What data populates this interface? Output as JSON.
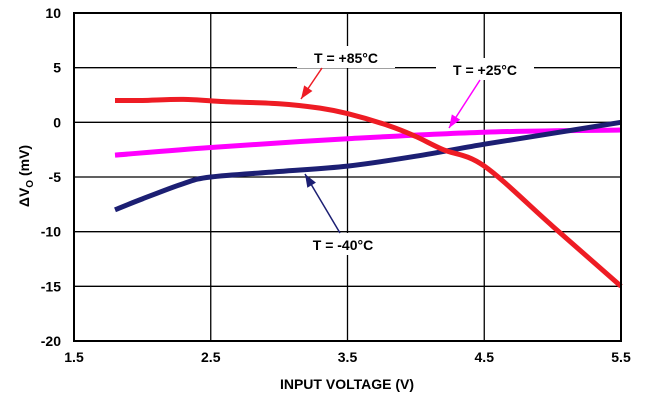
{
  "chart_data": {
    "type": "line",
    "xlabel": "INPUT VOLTAGE (V)",
    "ylabel": "ΔV_O (mV)",
    "ylabel_prefix": "ΔV",
    "ylabel_sub": "O",
    "ylabel_suffix": " (mV)",
    "xlim": [
      1.5,
      5.5
    ],
    "ylim": [
      -20,
      10
    ],
    "x_ticks": [
      1.5,
      2.5,
      3.5,
      4.5,
      5.5
    ],
    "x_tick_labels": [
      "1.5",
      "2.5",
      "3.5",
      "4.5",
      "5.5"
    ],
    "y_ticks": [
      -20,
      -15,
      -10,
      -5,
      0,
      5,
      10
    ],
    "y_tick_labels": [
      "-20",
      "-15",
      "-10",
      "-5",
      "0",
      "5",
      "10"
    ],
    "grid": true,
    "series": [
      {
        "name": "T = +85°C",
        "color": "#ee1c24",
        "x": [
          1.8,
          2.0,
          2.3,
          2.6,
          3.0,
          3.3,
          3.5,
          3.8,
          4.0,
          4.2,
          4.5,
          5.0,
          5.5
        ],
        "y": [
          2.0,
          2.0,
          2.1,
          1.9,
          1.7,
          1.3,
          0.8,
          -0.3,
          -1.3,
          -2.5,
          -4.0,
          -9.5,
          -15.0
        ]
      },
      {
        "name": "T = +25°C",
        "color": "#ff00ff",
        "x": [
          1.8,
          2.5,
          3.5,
          4.5,
          5.5
        ],
        "y": [
          -3.0,
          -2.3,
          -1.5,
          -0.9,
          -0.7
        ]
      },
      {
        "name": "T = -40°C",
        "color": "#1c1f73",
        "x": [
          1.8,
          2.0,
          2.3,
          2.5,
          3.0,
          3.5,
          4.0,
          4.5,
          5.0,
          5.5
        ],
        "y": [
          -8.0,
          -7.0,
          -5.6,
          -5.0,
          -4.5,
          -4.0,
          -3.1,
          -2.0,
          -1.0,
          0.0
        ]
      }
    ]
  }
}
